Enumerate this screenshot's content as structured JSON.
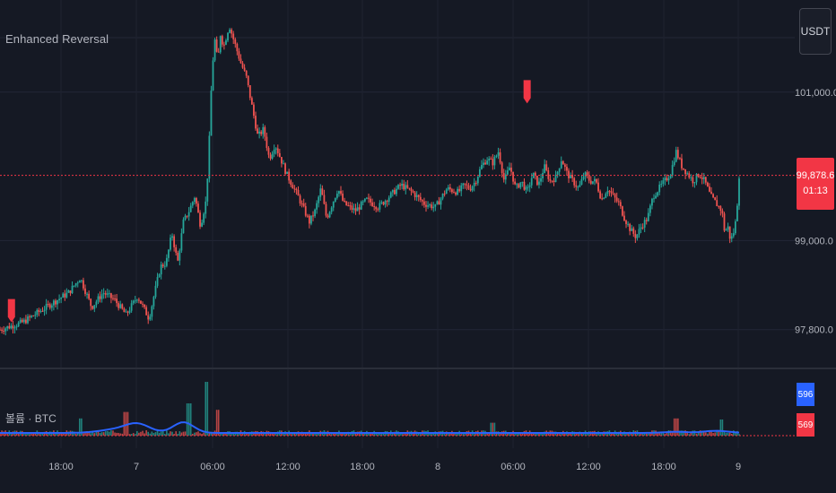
{
  "header": {
    "indicator_title": "Enhanced Reversal",
    "currency_button": "USDT"
  },
  "volume_pane": {
    "label": "볼륨 · BTC",
    "value_blue": "596",
    "value_red": "569"
  },
  "price_tag": {
    "price": "99,878.6",
    "countdown": "01:13"
  },
  "colors": {
    "background": "#151924",
    "up": "#26a69a",
    "down": "#ef5350",
    "accent_red": "#f23645",
    "ma_blue": "#2962ff",
    "grid": "#232736",
    "text": "#b2b5be"
  },
  "chart_data": {
    "type": "candlestick",
    "title": "Enhanced Reversal",
    "y_axis": {
      "ticks": [
        97800,
        99000,
        101000
      ],
      "tick_labels": [
        "97,800.0",
        "99,000.0",
        "101,000.0"
      ],
      "range": [
        97350,
        102000
      ]
    },
    "x_axis": {
      "tick_labels": [
        "18:00",
        "7",
        "06:00",
        "12:00",
        "18:00",
        "8",
        "06:00",
        "12:00",
        "18:00",
        "9"
      ]
    },
    "current_price": 99878.6,
    "grid": true,
    "price_path": {
      "x": [
        0,
        4,
        8,
        12,
        14,
        16,
        18,
        20,
        22,
        24,
        26,
        27,
        28,
        29,
        30,
        31,
        32,
        33,
        34,
        35,
        36,
        36.5,
        37,
        37.5,
        38,
        38.5,
        39,
        40,
        41,
        42,
        43,
        44,
        45,
        46,
        47,
        48,
        50,
        52,
        54,
        55,
        56,
        57,
        58,
        59,
        60,
        62,
        64,
        66,
        68,
        70,
        72,
        74,
        76,
        78,
        80,
        81,
        82,
        83,
        84,
        85,
        86,
        87,
        88,
        89,
        90,
        91,
        92,
        93,
        94,
        95,
        96,
        97,
        98,
        99,
        100,
        101,
        102,
        103,
        104,
        105,
        106,
        107,
        108,
        109,
        110,
        111,
        112,
        113,
        114,
        115,
        116,
        117,
        118,
        119,
        120,
        121,
        122,
        123,
        124,
        125,
        126,
        126.5,
        127,
        127.5,
        128,
        128.5,
        129
      ],
      "y": [
        97800,
        97900,
        98100,
        98300,
        98500,
        98100,
        98300,
        98200,
        98000,
        98250,
        97950,
        98300,
        98650,
        98700,
        99100,
        98700,
        99250,
        99400,
        99600,
        99200,
        99550,
        100300,
        101300,
        101700,
        101400,
        101800,
        101600,
        101900,
        101650,
        101400,
        101200,
        100800,
        100400,
        100500,
        100100,
        100300,
        99900,
        99600,
        99250,
        99400,
        99700,
        99300,
        99500,
        99700,
        99500,
        99400,
        99550,
        99450,
        99600,
        99750,
        99650,
        99500,
        99450,
        99700,
        99650,
        99750,
        99700,
        99800,
        100000,
        100100,
        100050,
        100200,
        99800,
        100000,
        99700,
        99800,
        99650,
        99900,
        99750,
        100000,
        99800,
        99850,
        100100,
        99900,
        99800,
        99700,
        99900,
        99800,
        99800,
        99550,
        99700,
        99600,
        99500,
        99300,
        99150,
        99050,
        99200,
        99300,
        99600,
        99700,
        99800,
        99900,
        100200,
        100000,
        99900,
        99800,
        99900,
        99800,
        99600,
        99500,
        99400,
        99100,
        99200,
        99000,
        99100,
        99300,
        99878.6
      ]
    },
    "signals": [
      {
        "type": "reversal",
        "x": 2,
        "price": 97850
      },
      {
        "type": "reversal",
        "x": 92,
        "price": 100800
      }
    ],
    "volume": {
      "series": [
        {
          "name": "볼륨 · BTC",
          "last": 596
        },
        {
          "name": "MA",
          "last": 569
        }
      ],
      "spikes": [
        {
          "x": 36,
          "value": 5.0
        },
        {
          "x": 33,
          "value": 3.0
        },
        {
          "x": 22,
          "value": 2.2
        },
        {
          "x": 38,
          "value": 2.4
        },
        {
          "x": 14,
          "value": 1.6
        },
        {
          "x": 118,
          "value": 1.6
        },
        {
          "x": 126,
          "value": 1.5
        },
        {
          "x": 86,
          "value": 1.2
        }
      ]
    }
  }
}
